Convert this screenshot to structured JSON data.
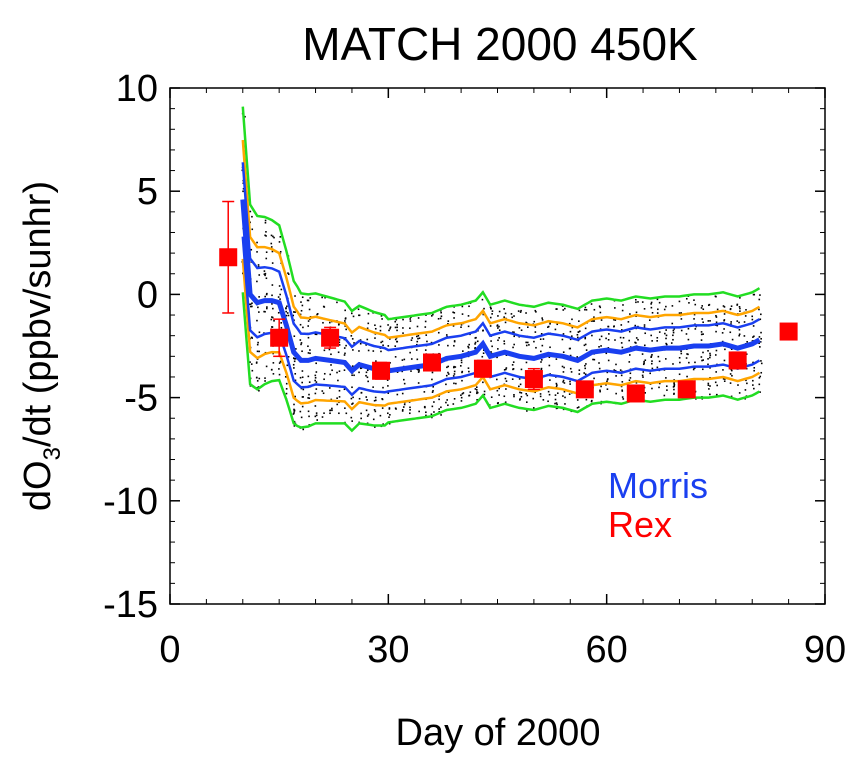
{
  "chart_data": {
    "type": "line",
    "title": "MATCH 2000  450K",
    "xlabel": "Day of 2000",
    "ylabel_main": "dO",
    "ylabel_sub": "3",
    "ylabel_rest": "/dt (ppbv/sunhr)",
    "xlim": [
      0,
      90
    ],
    "ylim": [
      -15,
      10
    ],
    "xticks": [
      0,
      30,
      60,
      90
    ],
    "yticks": [
      10,
      5,
      0,
      -5,
      -10,
      -15
    ],
    "legend_placement": "lower-right",
    "colors": {
      "Morris": "#1a3ff0",
      "Rex": "#ff0000",
      "orange_band": "#ffa500",
      "green_band": "#22dd22",
      "scatter": "#000000"
    },
    "legend": [
      {
        "label": "Morris",
        "color": "#1a3ff0"
      },
      {
        "label": "Rex",
        "color": "#ff0000"
      }
    ],
    "series": [
      {
        "name": "Morris",
        "x": [
          10,
          11,
          12,
          13,
          14,
          15,
          16,
          17,
          18,
          19,
          20,
          22,
          24,
          25,
          26,
          28,
          30,
          32,
          34,
          36,
          38,
          40,
          42,
          43,
          44,
          46,
          48,
          50,
          52,
          54,
          56,
          58,
          60,
          62,
          64,
          66,
          68,
          70,
          72,
          74,
          76,
          78,
          80,
          81
        ],
        "values": [
          4.6,
          0.0,
          -0.4,
          -0.3,
          -0.3,
          -0.4,
          -1.5,
          -2.8,
          -3.2,
          -3.2,
          -3.1,
          -3.2,
          -3.3,
          -3.7,
          -3.4,
          -3.6,
          -3.7,
          -3.6,
          -3.5,
          -3.4,
          -3.1,
          -3.0,
          -2.8,
          -2.4,
          -3.0,
          -2.8,
          -3.0,
          -3.1,
          -2.9,
          -3.0,
          -3.2,
          -2.8,
          -2.7,
          -2.8,
          -2.6,
          -2.7,
          -2.6,
          -2.6,
          -2.5,
          -2.5,
          -2.4,
          -2.6,
          -2.4,
          -2.2
        ]
      },
      {
        "name": "Rex",
        "x": [
          8,
          15,
          22,
          29,
          36,
          43,
          50,
          57,
          64,
          71,
          78,
          85
        ],
        "values": [
          1.8,
          -2.1,
          -2.1,
          -3.7,
          -3.3,
          -3.6,
          -4.1,
          -4.6,
          -4.8,
          -4.6,
          -3.2,
          -1.8
        ],
        "errors": [
          2.7,
          0.9,
          0.5,
          0.4,
          0.4,
          0.4,
          0.5,
          0.3,
          0.3,
          0.3,
          0.4,
          0.3
        ]
      }
    ],
    "bands": [
      {
        "color": "#1a3ff0",
        "offset": 1.0
      },
      {
        "color": "#ffa500",
        "offset": 1.6
      },
      {
        "color": "#22dd22",
        "offset": 2.5
      }
    ],
    "initial_spread": [
      {
        "x": 10,
        "blue_upper": 4.6,
        "blue_lower": 2.2,
        "orange_upper": 5.5,
        "orange_lower": 0.0,
        "green_upper": 6.6,
        "green_lower": -2.2
      }
    ]
  }
}
